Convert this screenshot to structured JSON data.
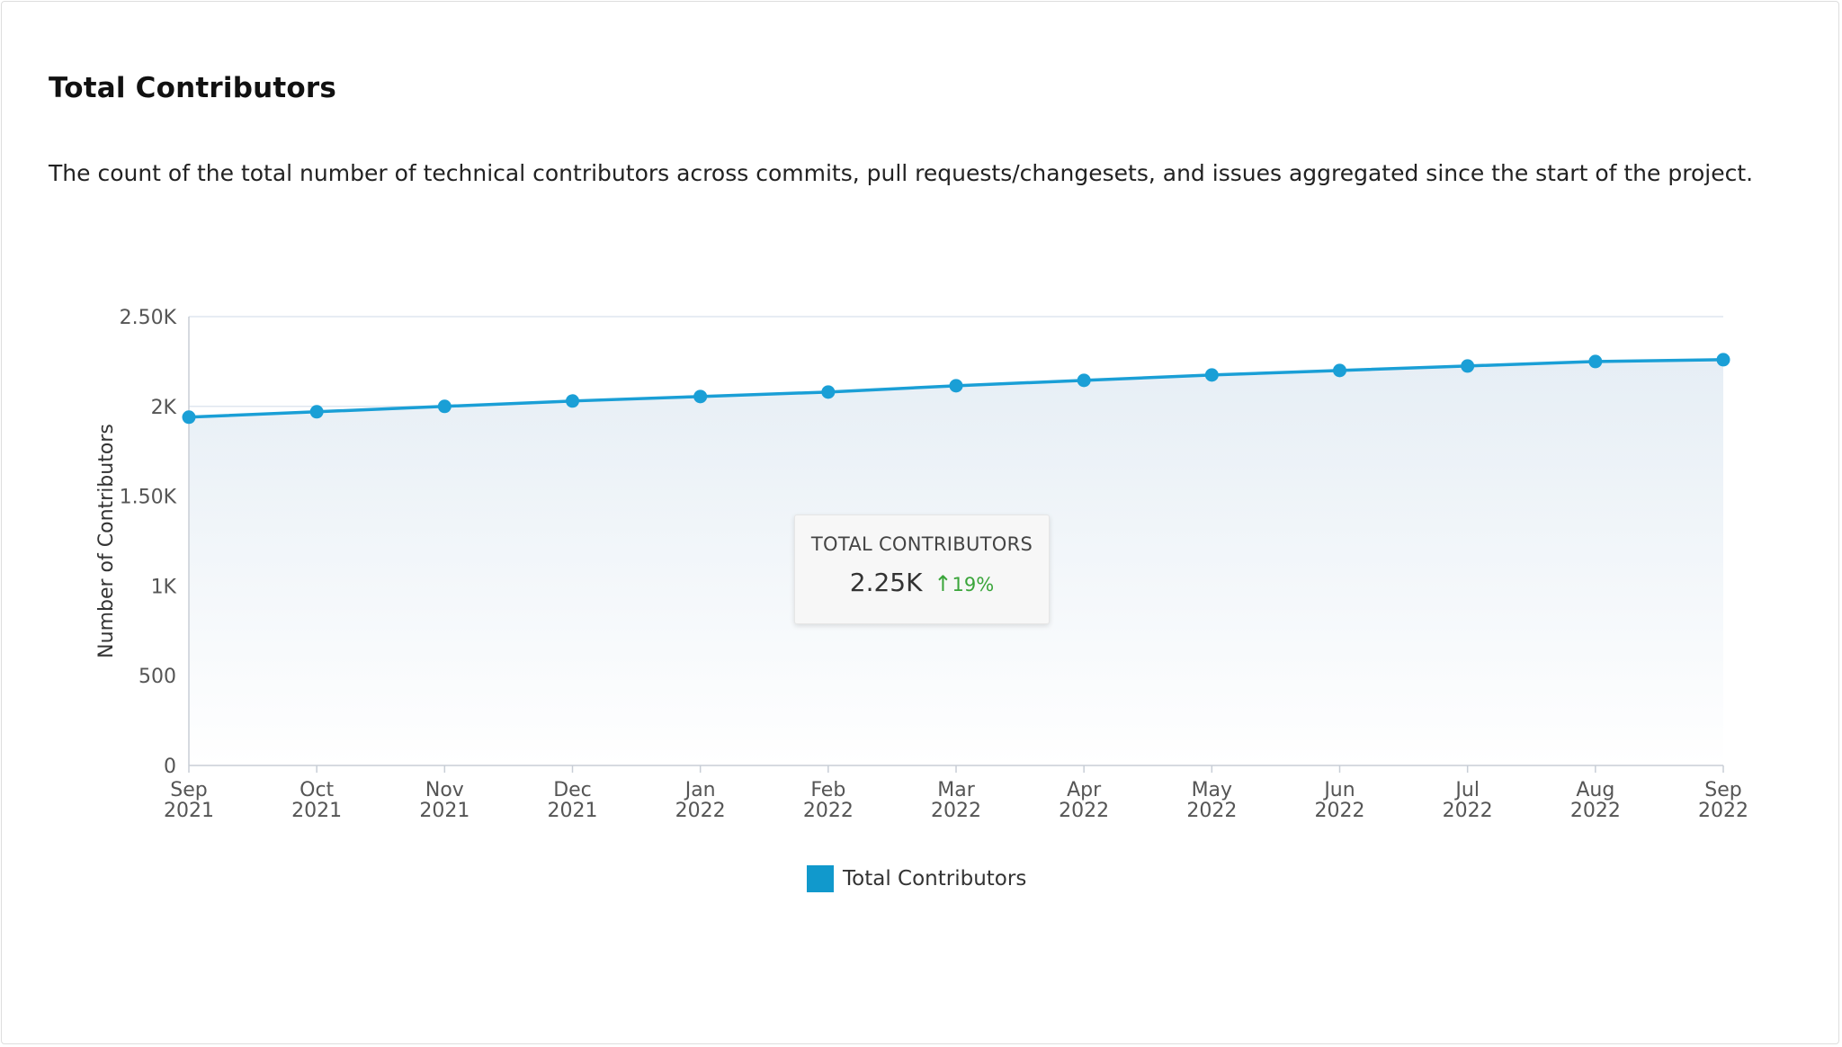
{
  "card": {
    "title": "Total Contributors",
    "description": "The count of the total number of technical contributors across commits, pull requests/changesets, and issues aggregated since the start of the project."
  },
  "colors": {
    "line": "#1a9fd6",
    "area_top": "#e6eef5",
    "grid": "#dfe6ef",
    "legend_swatch": "#1199cc",
    "positive": "#3aa53a"
  },
  "tooltip": {
    "title": "TOTAL CONTRIBUTORS",
    "value": "2.25K",
    "change": "19%",
    "change_icon": "arrow-up-icon"
  },
  "chart_data": {
    "type": "area",
    "title": "",
    "xlabel": "",
    "ylabel": "Number of Contributors",
    "x_tick_labels": [
      [
        "Sep",
        "2021"
      ],
      [
        "Oct",
        "2021"
      ],
      [
        "Nov",
        "2021"
      ],
      [
        "Dec",
        "2021"
      ],
      [
        "Jan",
        "2022"
      ],
      [
        "Feb",
        "2022"
      ],
      [
        "Mar",
        "2022"
      ],
      [
        "Apr",
        "2022"
      ],
      [
        "May",
        "2022"
      ],
      [
        "Jun",
        "2022"
      ],
      [
        "Jul",
        "2022"
      ],
      [
        "Aug",
        "2022"
      ],
      [
        "Sep",
        "2022"
      ]
    ],
    "y_tick_labels": [
      "0",
      "500",
      "1K",
      "1.50K",
      "2K",
      "2.50K"
    ],
    "y_tick_values": [
      0,
      500,
      1000,
      1500,
      2000,
      2500
    ],
    "ylim": [
      0,
      2500
    ],
    "grid": true,
    "legend": "bottom-center",
    "series": [
      {
        "name": "Total Contributors",
        "values": [
          1940,
          1970,
          2000,
          2030,
          2055,
          2080,
          2115,
          2145,
          2175,
          2200,
          2225,
          2250,
          2260
        ]
      }
    ]
  }
}
